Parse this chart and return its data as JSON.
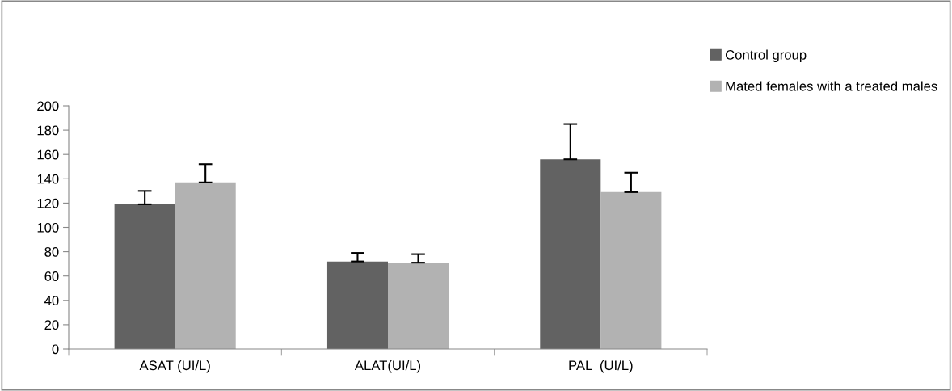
{
  "chart_data": {
    "type": "bar",
    "categories": [
      "ASAT (UI/L)",
      "ALAT(UI/L)",
      "PAL  (UI/L)"
    ],
    "series": [
      {
        "name": "Control group",
        "color": "#626262",
        "values": [
          119,
          72,
          156
        ],
        "errors": [
          [
            119,
            130
          ],
          [
            72,
            79
          ],
          [
            156,
            185
          ]
        ]
      },
      {
        "name": "Mated females with a treated males",
        "color": "#b2b2b2",
        "values": [
          137,
          71,
          129
        ],
        "errors": [
          [
            137,
            152
          ],
          [
            71,
            78
          ],
          [
            129,
            145
          ]
        ]
      }
    ],
    "ylim": [
      0,
      200
    ],
    "yticks": [
      0,
      20,
      40,
      60,
      80,
      100,
      120,
      140,
      160,
      180,
      200
    ],
    "grid": false,
    "legend": "top right"
  }
}
